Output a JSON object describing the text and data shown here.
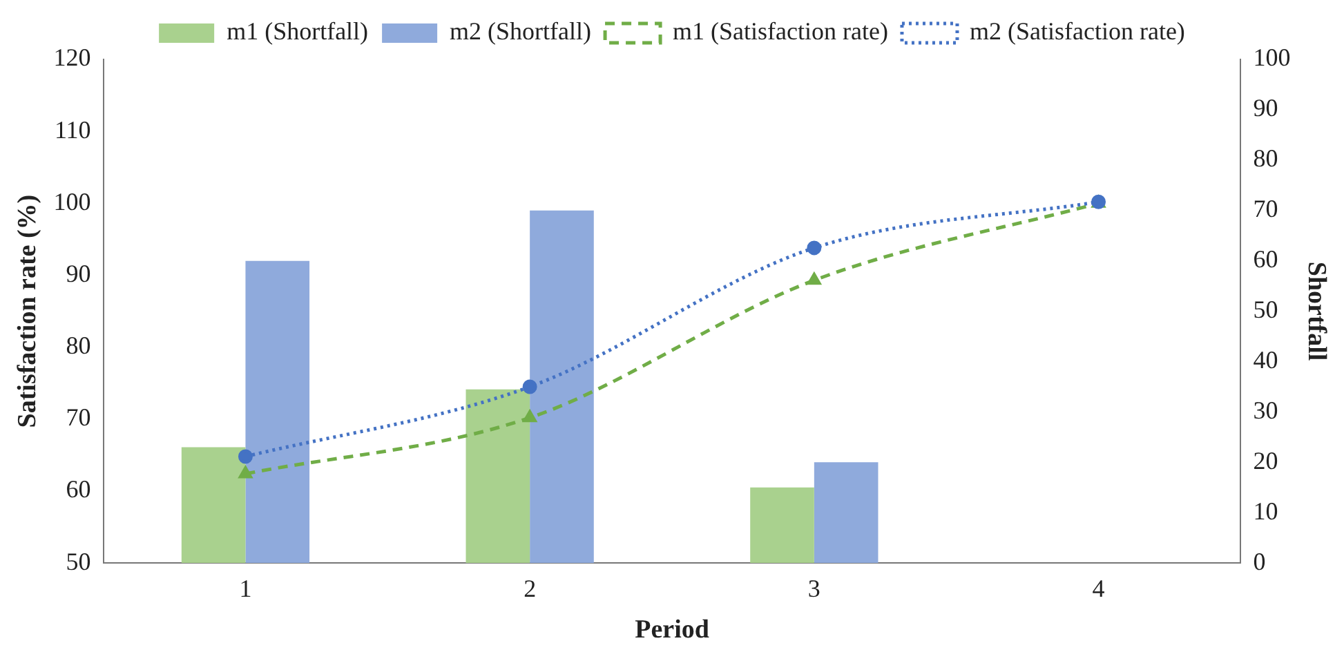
{
  "chart_data": {
    "type": "bar",
    "xlabel": "Period",
    "ylabel": "Satisfaction rate (%)",
    "y2label": "Shortfall",
    "categories": [
      "1",
      "2",
      "3",
      "4"
    ],
    "series": [
      {
        "name": "m1 (Shortfall)",
        "axis": "y2",
        "color": "#a9d18e",
        "values": [
          23,
          34.5,
          15,
          0
        ]
      },
      {
        "name": "m2 (Shortfall)",
        "axis": "y2",
        "color": "#8faadc",
        "values": [
          60,
          70,
          20,
          0
        ]
      },
      {
        "name": "m1 (Satisfaction rate)",
        "type": "line",
        "color": "#70ad47",
        "marker": "triangle",
        "line_style": "dashed",
        "values": [
          62.4,
          70.2,
          89.3,
          100
        ]
      },
      {
        "name": "m2 (Satisfaction rate)",
        "type": "line",
        "color": "#4472c4",
        "marker": "circle",
        "line_style": "dotted",
        "values": [
          64.8,
          74.5,
          93.8,
          100.2
        ]
      }
    ],
    "ylim": [
      50,
      120
    ],
    "yticks": [
      50,
      60,
      70,
      80,
      90,
      100,
      110,
      120
    ],
    "y2lim": [
      0,
      100
    ],
    "y2ticks": [
      0,
      10,
      20,
      30,
      40,
      50,
      60,
      70,
      80,
      90,
      100
    ],
    "grid": false,
    "legend": "top"
  }
}
